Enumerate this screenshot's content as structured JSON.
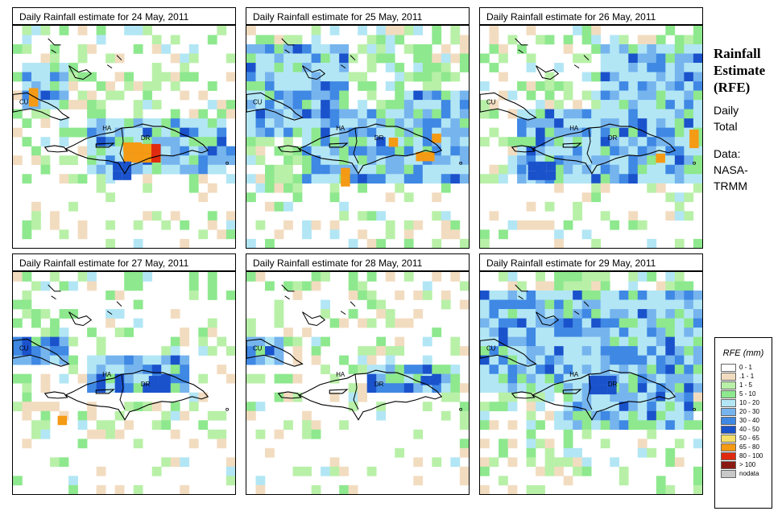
{
  "panels": [
    {
      "title": "Daily Rainfall estimate for  24 May, 2011",
      "seed": 11,
      "core": [
        [
          "r",
          150,
          148,
          3,
          2
        ],
        [
          "o",
          138,
          146,
          2,
          1
        ],
        [
          "o",
          20,
          78,
          1,
          2
        ],
        [
          "db",
          125,
          170,
          2,
          2
        ]
      ],
      "blue": [
        [
          10,
          40,
          55,
          60
        ],
        [
          90,
          110,
          170,
          70
        ],
        [
          230,
          150,
          50,
          20
        ]
      ],
      "green": 0.34
    },
    {
      "title": "Daily Rainfall estimate for  25 May, 2011",
      "seed": 23,
      "core": [
        [
          "o",
          178,
          140,
          1,
          1
        ],
        [
          "o",
          212,
          158,
          2,
          1
        ],
        [
          "o",
          232,
          135,
          1,
          1
        ],
        [
          "o",
          118,
          178,
          1,
          2
        ]
      ],
      "blue": [
        [
          0,
          20,
          120,
          110
        ],
        [
          60,
          100,
          220,
          90
        ],
        [
          180,
          80,
          90,
          40
        ]
      ],
      "green": 0.5
    },
    {
      "title": "Daily Rainfall estimate for  26 May, 2011",
      "seed": 37,
      "core": [
        [
          "o",
          262,
          130,
          1,
          2
        ],
        [
          "o",
          220,
          160,
          1,
          1
        ],
        [
          "db",
          60,
          170,
          3,
          2
        ]
      ],
      "blue": [
        [
          40,
          100,
          230,
          90
        ],
        [
          150,
          20,
          120,
          90
        ]
      ],
      "green": 0.4
    },
    {
      "title": "Daily Rainfall estimate for  27 May, 2011",
      "seed": 41,
      "core": [
        [
          "db",
          170,
          130,
          2,
          1
        ],
        [
          "o",
          56,
          180,
          1,
          1
        ]
      ],
      "blue": [
        [
          0,
          70,
          60,
          40
        ],
        [
          90,
          100,
          120,
          50
        ]
      ],
      "green": 0.28
    },
    {
      "title": "Daily Rainfall estimate for  28 May, 2011",
      "seed": 53,
      "core": [
        [
          "db",
          218,
          130,
          2,
          1
        ]
      ],
      "blue": [
        [
          0,
          70,
          40,
          40
        ],
        [
          140,
          110,
          120,
          40
        ]
      ],
      "green": 0.24
    },
    {
      "title": "Daily Rainfall estimate for  29 May, 2011",
      "seed": 67,
      "core": [
        [
          "db",
          136,
          130,
          3,
          2
        ],
        [
          "db",
          220,
          150,
          1,
          1
        ]
      ],
      "blue": [
        [
          0,
          20,
          278,
          120
        ],
        [
          100,
          120,
          160,
          70
        ]
      ],
      "green": 0.55
    }
  ],
  "labels": {
    "cu": "CU",
    "ha": "HA",
    "dr": "DR"
  },
  "side": {
    "rfe_line1": "Rainfall",
    "rfe_line2": "Estimate",
    "rfe_line3": "(RFE)",
    "daily1": "Daily",
    "daily2": "Total",
    "data1": "Data:",
    "data2": "NASA-",
    "data3": "TRMM"
  },
  "legend": {
    "title": "RFE (mm)",
    "items": [
      {
        "label": "0 - 1",
        "color": "#ffffff"
      },
      {
        "label": ".1 - 1",
        "color": "#f2dcc0"
      },
      {
        "label": "1 - 5",
        "color": "#b8f0a8"
      },
      {
        "label": "5 - 10",
        "color": "#8ee88e"
      },
      {
        "label": "10 - 20",
        "color": "#b2e6f5"
      },
      {
        "label": "20 - 30",
        "color": "#76b4ee"
      },
      {
        "label": "30 - 40",
        "color": "#3f88e4"
      },
      {
        "label": "40 - 50",
        "color": "#1a52cc"
      },
      {
        "label": "50 - 65",
        "color": "#f5df6a"
      },
      {
        "label": "65 - 80",
        "color": "#f59a14"
      },
      {
        "label": "80 - 100",
        "color": "#e02a10"
      },
      {
        "label": "> 100",
        "color": "#8b1a12"
      },
      {
        "label": "nodata",
        "color": "#c8c8c8"
      }
    ]
  }
}
